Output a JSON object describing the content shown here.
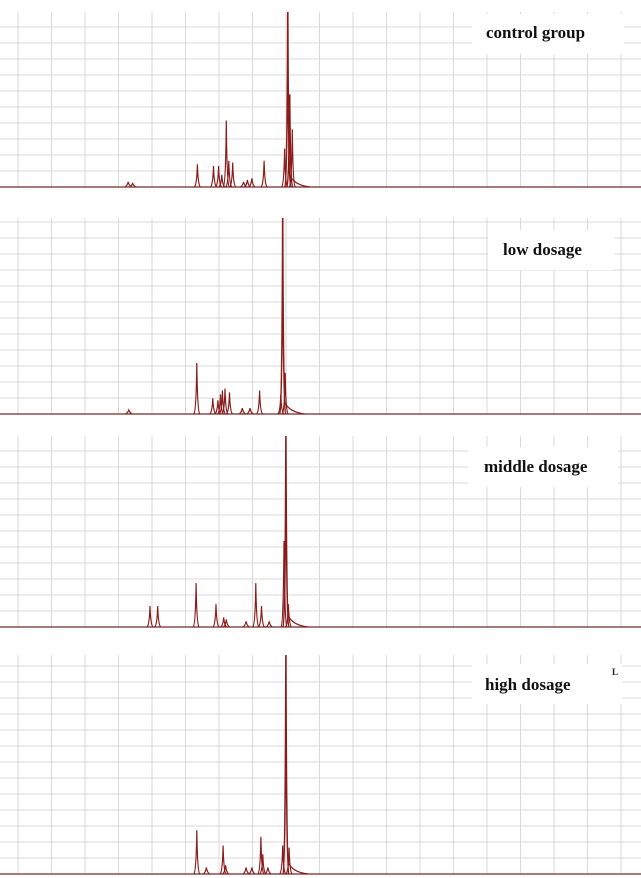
{
  "chart_data": [
    {
      "type": "line",
      "label": "control   group",
      "peaks": [
        {
          "x": 0.308,
          "h": 0.13
        },
        {
          "x": 0.333,
          "h": 0.12
        },
        {
          "x": 0.341,
          "h": 0.12
        },
        {
          "x": 0.346,
          "h": 0.07
        },
        {
          "x": 0.353,
          "h": 0.38
        },
        {
          "x": 0.357,
          "h": 0.15
        },
        {
          "x": 0.363,
          "h": 0.14
        },
        {
          "x": 0.38,
          "h": 0.03
        },
        {
          "x": 0.386,
          "h": 0.04
        },
        {
          "x": 0.393,
          "h": 0.05
        },
        {
          "x": 0.412,
          "h": 0.15
        },
        {
          "x": 0.444,
          "h": 0.22
        },
        {
          "x": 0.449,
          "h": 1.0
        },
        {
          "x": 0.452,
          "h": 0.53
        },
        {
          "x": 0.456,
          "h": 0.33
        },
        {
          "x": 0.2,
          "h": 0.03
        },
        {
          "x": 0.207,
          "h": 0.02
        }
      ]
    },
    {
      "type": "line",
      "label": "low dosage",
      "peaks": [
        {
          "x": 0.307,
          "h": 0.26
        },
        {
          "x": 0.332,
          "h": 0.08
        },
        {
          "x": 0.34,
          "h": 0.07
        },
        {
          "x": 0.344,
          "h": 0.1
        },
        {
          "x": 0.347,
          "h": 0.12
        },
        {
          "x": 0.351,
          "h": 0.13
        },
        {
          "x": 0.358,
          "h": 0.11
        },
        {
          "x": 0.378,
          "h": 0.03
        },
        {
          "x": 0.39,
          "h": 0.03
        },
        {
          "x": 0.405,
          "h": 0.12
        },
        {
          "x": 0.438,
          "h": 0.1
        },
        {
          "x": 0.441,
          "h": 1.0
        },
        {
          "x": 0.445,
          "h": 0.21
        },
        {
          "x": 0.201,
          "h": 0.02
        }
      ]
    },
    {
      "type": "line",
      "label": "middle  dosage",
      "peaks": [
        {
          "x": 0.234,
          "h": 0.11
        },
        {
          "x": 0.246,
          "h": 0.11
        },
        {
          "x": 0.306,
          "h": 0.23
        },
        {
          "x": 0.337,
          "h": 0.12
        },
        {
          "x": 0.349,
          "h": 0.05
        },
        {
          "x": 0.353,
          "h": 0.04
        },
        {
          "x": 0.384,
          "h": 0.03
        },
        {
          "x": 0.399,
          "h": 0.23
        },
        {
          "x": 0.408,
          "h": 0.11
        },
        {
          "x": 0.42,
          "h": 0.03
        },
        {
          "x": 0.443,
          "h": 0.45
        },
        {
          "x": 0.446,
          "h": 1.0
        },
        {
          "x": 0.45,
          "h": 0.12
        }
      ]
    },
    {
      "type": "line",
      "label": "high dosage",
      "peaks": [
        {
          "x": 0.307,
          "h": 0.2
        },
        {
          "x": 0.322,
          "h": 0.03
        },
        {
          "x": 0.348,
          "h": 0.13
        },
        {
          "x": 0.352,
          "h": 0.04
        },
        {
          "x": 0.384,
          "h": 0.03
        },
        {
          "x": 0.393,
          "h": 0.03
        },
        {
          "x": 0.407,
          "h": 0.17
        },
        {
          "x": 0.41,
          "h": 0.09
        },
        {
          "x": 0.418,
          "h": 0.03
        },
        {
          "x": 0.441,
          "h": 0.13
        },
        {
          "x": 0.446,
          "h": 1.0
        },
        {
          "x": 0.451,
          "h": 0.12
        }
      ]
    }
  ],
  "corner_mark": "L",
  "colors": {
    "spectrum": "#8b1a1a",
    "grid": "#d9d9d9",
    "baseline": "#6e2a2a",
    "label_box": "#ffffff"
  }
}
